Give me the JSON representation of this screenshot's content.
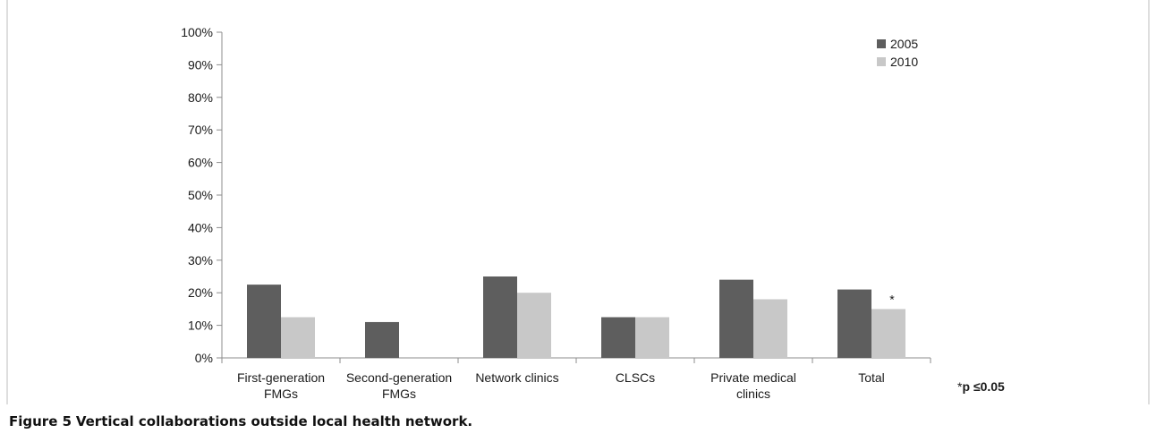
{
  "caption": {
    "label": "Figure 5",
    "title": "Vertical collaborations outside local health network."
  },
  "chart_data": {
    "type": "bar",
    "categories": [
      [
        "First-generation",
        "FMGs"
      ],
      [
        "Second-generation",
        "FMGs"
      ],
      [
        "Network clinics"
      ],
      [
        "CLSCs"
      ],
      [
        "Private medical",
        "clinics"
      ],
      [
        "Total"
      ]
    ],
    "series": [
      {
        "name": "2005",
        "color": "#5e5e5e",
        "values": [
          22.5,
          11,
          25,
          12.5,
          24,
          21
        ]
      },
      {
        "name": "2010",
        "color": "#c8c8c8",
        "values": [
          12.5,
          0,
          20,
          12.5,
          18,
          15
        ]
      }
    ],
    "ylim": [
      0,
      100
    ],
    "yticks": [
      0,
      10,
      20,
      30,
      40,
      50,
      60,
      70,
      80,
      90,
      100
    ],
    "ytick_suffix": "%",
    "legend_position": "top-right",
    "annotations": [
      {
        "category_index": 5,
        "series_index": 1,
        "text": "*"
      }
    ],
    "footnote": {
      "star": "*",
      "text": "p ≤0.05"
    },
    "grid": false
  }
}
